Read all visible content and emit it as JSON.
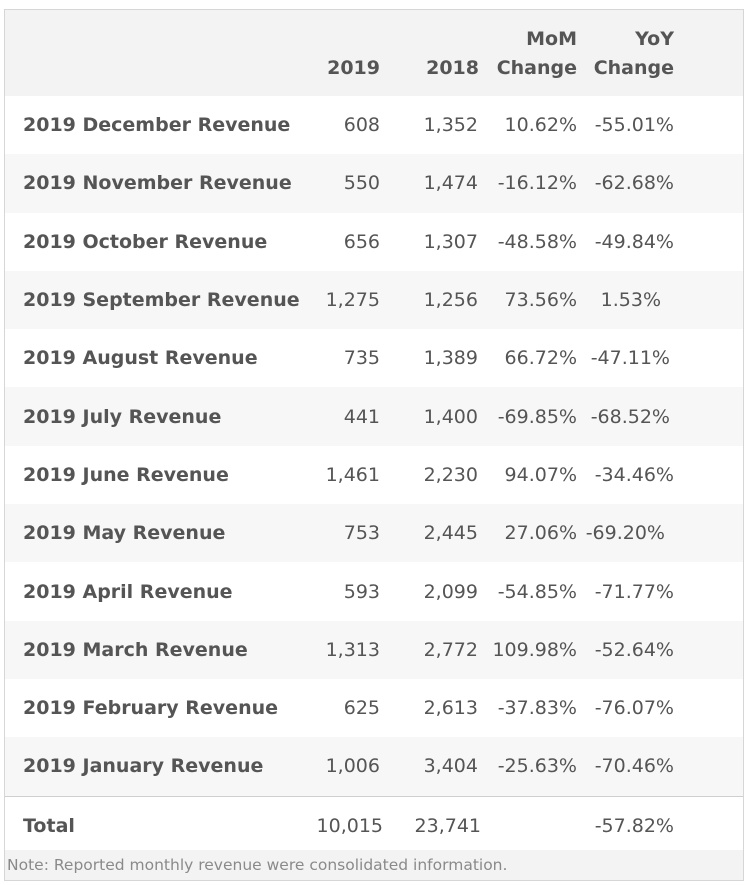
{
  "header": {
    "col_2019": "2019",
    "col_2018": "2018",
    "col_mom_line1": "MoM",
    "col_mom_line2": "Change",
    "col_yoy_line1": "YoY",
    "col_yoy_line2": "Change"
  },
  "rows": [
    {
      "label": "2019 December Revenue",
      "v2019": "608",
      "v2018": "1,352",
      "mom": "10.62%",
      "yoy": "-55.01%"
    },
    {
      "label": "2019 November Revenue",
      "v2019": "550",
      "v2018": "1,474",
      "mom": "-16.12%",
      "yoy": "-62.68%"
    },
    {
      "label": "2019 October Revenue",
      "v2019": "656",
      "v2018": "1,307",
      "mom": "-48.58%",
      "yoy": "-49.84%"
    },
    {
      "label": "2019 September Revenue",
      "v2019": "1,275",
      "v2018": "1,256",
      "mom": "73.56%",
      "yoy": "1.53%"
    },
    {
      "label": "2019 August Revenue",
      "v2019": "735",
      "v2018": "1,389",
      "mom": "66.72%",
      "yoy": "-47.11%"
    },
    {
      "label": "2019 July Revenue",
      "v2019": "441",
      "v2018": "1,400",
      "mom": "-69.85%",
      "yoy": "-68.52%"
    },
    {
      "label": "2019 June Revenue",
      "v2019": "1,461",
      "v2018": "2,230",
      "mom": "94.07%",
      "yoy": "-34.46%"
    },
    {
      "label": "2019 May Revenue",
      "v2019": "753",
      "v2018": "2,445",
      "mom": "27.06%",
      "yoy": "-69.20%"
    },
    {
      "label": "2019 April Revenue",
      "v2019": "593",
      "v2018": "2,099",
      "mom": "-54.85%",
      "yoy": "-71.77%"
    },
    {
      "label": "2019 March Revenue",
      "v2019": "1,313",
      "v2018": "2,772",
      "mom": "109.98%",
      "yoy": "-52.64%"
    },
    {
      "label": "2019 February Revenue",
      "v2019": "625",
      "v2018": "2,613",
      "mom": "-37.83%",
      "yoy": "-76.07%"
    },
    {
      "label": "2019 January Revenue",
      "v2019": "1,006",
      "v2018": "3,404",
      "mom": "-25.63%",
      "yoy": "-70.46%"
    }
  ],
  "total": {
    "label": "Total",
    "v2019": "10,015",
    "v2018": "23,741",
    "mom": "",
    "yoy": "-57.82%"
  },
  "note": "Note: Reported monthly revenue were consolidated information."
}
